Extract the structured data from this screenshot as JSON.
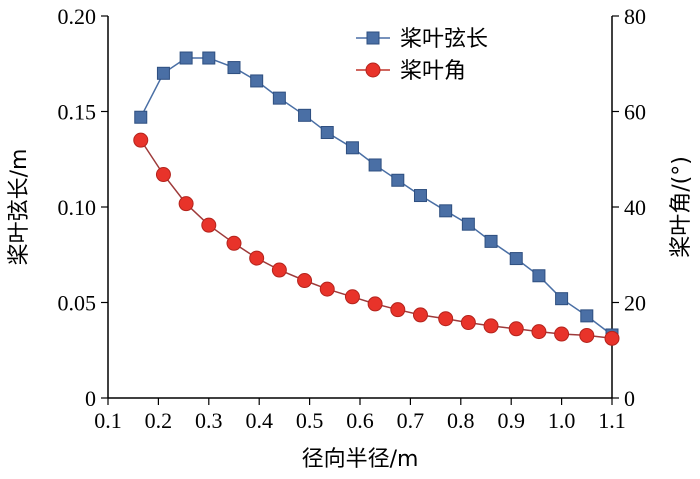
{
  "chart_data": {
    "type": "line",
    "xlabel": "径向半径/m",
    "ylabel_left": "桨叶弦长/m",
    "ylabel_right": "桨叶角/(°)",
    "xlim": [
      0.1,
      1.1
    ],
    "ylim_left": [
      0,
      0.2
    ],
    "ylim_right": [
      0,
      80
    ],
    "x_ticks": [
      "0.1",
      "0.2",
      "0.3",
      "0.4",
      "0.5",
      "0.6",
      "0.7",
      "0.8",
      "0.9",
      "1.0",
      "1.1"
    ],
    "y_left_ticks": [
      "0",
      "0.05",
      "0.10",
      "0.15",
      "0.20"
    ],
    "y_right_ticks": [
      "0",
      "20",
      "40",
      "60",
      "80"
    ],
    "grid": false,
    "legend_position": "top-right",
    "series": [
      {
        "name": "桨叶弦长",
        "axis": "left",
        "marker": "square",
        "color": "#4a6fa5",
        "x": [
          0.165,
          0.21,
          0.255,
          0.3,
          0.35,
          0.395,
          0.44,
          0.49,
          0.535,
          0.585,
          0.63,
          0.675,
          0.72,
          0.77,
          0.815,
          0.86,
          0.91,
          0.955,
          1.0,
          1.05,
          1.1
        ],
        "y": [
          0.147,
          0.17,
          0.178,
          0.178,
          0.173,
          0.166,
          0.157,
          0.148,
          0.139,
          0.131,
          0.122,
          0.114,
          0.106,
          0.098,
          0.091,
          0.082,
          0.073,
          0.064,
          0.052,
          0.043,
          0.033
        ]
      },
      {
        "name": "桨叶角",
        "axis": "right",
        "marker": "circle",
        "color": "#e8332a",
        "x": [
          0.165,
          0.21,
          0.255,
          0.3,
          0.35,
          0.395,
          0.44,
          0.49,
          0.535,
          0.585,
          0.63,
          0.675,
          0.72,
          0.77,
          0.815,
          0.86,
          0.91,
          0.955,
          1.0,
          1.05,
          1.1
        ],
        "y": [
          54.0,
          46.8,
          40.7,
          36.2,
          32.4,
          29.3,
          26.8,
          24.6,
          22.8,
          21.2,
          19.7,
          18.5,
          17.4,
          16.6,
          15.8,
          15.1,
          14.5,
          13.9,
          13.4,
          13.1,
          12.5
        ]
      }
    ]
  }
}
